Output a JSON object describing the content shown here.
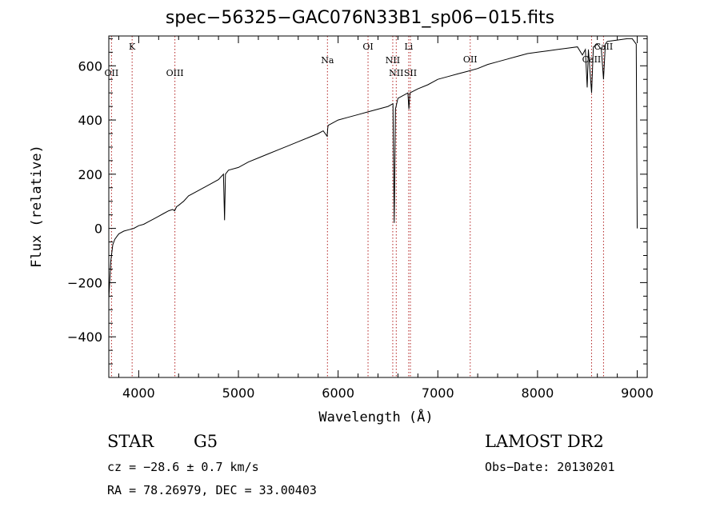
{
  "chart_data": {
    "type": "line",
    "title": "spec−56325−GAC076N33B1_sp06−015.fits",
    "xlabel": "Wavelength (Å)",
    "ylabel": "Flux (relative)",
    "xlim": [
      3700,
      9100
    ],
    "ylim": [
      -550,
      710
    ],
    "xticks": [
      4000,
      5000,
      6000,
      7000,
      8000,
      9000
    ],
    "yticks": [
      -400,
      -200,
      0,
      200,
      400,
      600
    ],
    "xtick_labels": [
      "4000",
      "5000",
      "6000",
      "7000",
      "8000",
      "9000"
    ],
    "ytick_labels": [
      "−400",
      "−200",
      "0",
      "200",
      "400",
      "600"
    ],
    "series": [
      {
        "color": "#000000",
        "x": [
          3700,
          3720,
          3740,
          3760,
          3800,
          3850,
          3900,
          3950,
          4000,
          4050,
          4100,
          4150,
          4200,
          4250,
          4300,
          4340,
          4360,
          4380,
          4400,
          4450,
          4500,
          4600,
          4700,
          4800,
          4850,
          4861,
          4870,
          4900,
          5000,
          5100,
          5200,
          5300,
          5400,
          5500,
          5600,
          5700,
          5800,
          5850,
          5890,
          5896,
          5900,
          5950,
          6000,
          6100,
          6200,
          6300,
          6400,
          6500,
          6550,
          6563,
          6575,
          6600,
          6700,
          6710,
          6720,
          6800,
          6900,
          7000,
          7100,
          7200,
          7300,
          7400,
          7500,
          7600,
          7700,
          7800,
          7900,
          8000,
          8100,
          8200,
          8300,
          8400,
          8450,
          8480,
          8498,
          8510,
          8542,
          8560,
          8600,
          8640,
          8662,
          8680,
          8700,
          8800,
          8900,
          8950,
          8990,
          9000
        ],
        "y": [
          -260,
          -120,
          -60,
          -40,
          -20,
          -10,
          -5,
          0,
          10,
          15,
          25,
          35,
          45,
          55,
          65,
          70,
          65,
          80,
          85,
          100,
          120,
          140,
          160,
          180,
          200,
          30,
          200,
          215,
          225,
          245,
          260,
          275,
          290,
          305,
          320,
          335,
          350,
          360,
          340,
          370,
          380,
          390,
          400,
          410,
          420,
          430,
          440,
          450,
          460,
          20,
          440,
          480,
          500,
          440,
          500,
          515,
          530,
          550,
          560,
          570,
          580,
          590,
          605,
          615,
          625,
          635,
          645,
          650,
          655,
          660,
          665,
          670,
          640,
          660,
          520,
          660,
          500,
          670,
          680,
          660,
          550,
          680,
          690,
          695,
          700,
          700,
          680,
          0
        ]
      }
    ],
    "lines": [
      {
        "label": "OII",
        "x": 3727
      },
      {
        "label": "K",
        "x": 3934
      },
      {
        "label": "OIII",
        "x": 4363
      },
      {
        "label": "Na",
        "x": 5893
      },
      {
        "label": "OI",
        "x": 6300
      },
      {
        "label": "NII",
        "x": 6548
      },
      {
        "label": "NII",
        "x": 6583
      },
      {
        "label": "Li",
        "x": 6708
      },
      {
        "label": "SII",
        "x": 6725
      },
      {
        "label": "OII",
        "x": 7325
      },
      {
        "label": "CaII",
        "x": 8542
      },
      {
        "label": "CaII",
        "x": 8662
      }
    ],
    "grid": false,
    "legend": "none"
  },
  "footer": {
    "class_label": "STAR",
    "subclass": "G5",
    "survey": "LAMOST DR2",
    "cz": "cz = −28.6 ± 0.7 km/s",
    "obs_date": "Obs−Date: 20130201",
    "coords": "RA =  78.26979, DEC =  33.00403"
  }
}
